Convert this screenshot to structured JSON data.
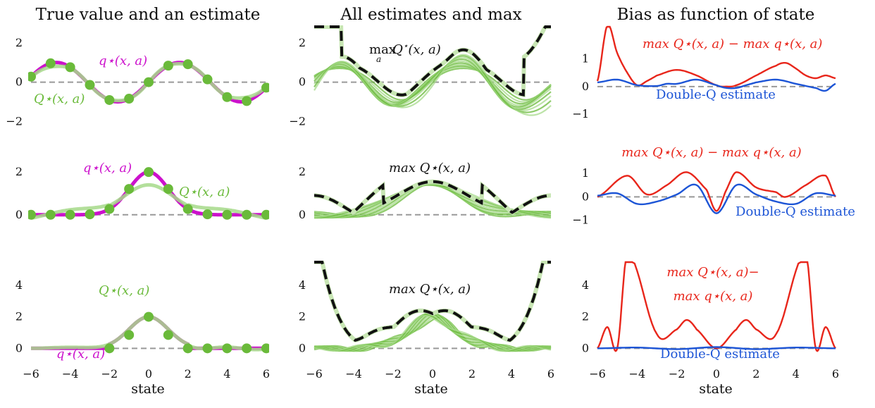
{
  "figure": {
    "column_titles": [
      "True value and an estimate",
      "All estimates and max",
      "Bias as function of state"
    ],
    "xlabel": "state"
  },
  "colors": {
    "true_value": "#cc11cc",
    "estimate": "#6aba3a",
    "estimate_light": "#a6d98a",
    "max": "#111111",
    "bias": "#e8261b",
    "double_q": "#1d55d6",
    "zero_line": "#999999"
  },
  "labels": {
    "q_true": "q⋆(x, a)",
    "q_est": "Q⋆(x, a)",
    "max_est": "max Q⋆(x, a)",
    "bias_expr": "max Q⋆(x, a) − max q⋆(x, a)",
    "bias_expr_line1": "max Q⋆(x, a)−",
    "bias_expr_line2": "max q⋆(x, a)",
    "double_q": "Double-Q estimate"
  },
  "chart_data": [
    {
      "type": "line",
      "row": 1,
      "col": 1,
      "title": "True value and an estimate",
      "xlabel": "",
      "xlim": [
        -6,
        6
      ],
      "ylim": [
        -2.2,
        2.6
      ],
      "yticks": [
        -2,
        0,
        2
      ],
      "xticks": [],
      "series": [
        {
          "name": "q⋆(x, a)",
          "role": "true_value",
          "function": "sin(x)",
          "x": [
            -6,
            6
          ]
        },
        {
          "name": "Q⋆(x, a)",
          "role": "estimate",
          "fit_points": "integer states -6..6",
          "approx": "sin(x) polynomial fit"
        }
      ],
      "points": {
        "x": [
          -6,
          -5,
          -4,
          -3,
          -2,
          -1,
          0,
          1,
          2,
          3,
          4,
          5,
          6
        ],
        "y": [
          0.28,
          0.96,
          0.76,
          -0.14,
          -0.91,
          -0.84,
          0.0,
          0.84,
          0.91,
          0.14,
          -0.76,
          -0.96,
          -0.28
        ]
      }
    },
    {
      "type": "line",
      "row": 1,
      "col": 2,
      "title": "All estimates and max",
      "xlim": [
        -6,
        6
      ],
      "ylim": [
        -2.2,
        2.6
      ],
      "yticks": [
        -2,
        0,
        2
      ],
      "xticks": [],
      "series": [
        {
          "name": "estimates",
          "role": "estimate",
          "count": 10
        },
        {
          "name": "max Q⋆(x, a)",
          "role": "max",
          "style": "dashed"
        }
      ]
    },
    {
      "type": "line",
      "row": 1,
      "col": 3,
      "title": "Bias as function of state",
      "xlim": [
        -6,
        6
      ],
      "ylim": [
        -1.4,
        2.0
      ],
      "yticks": [
        -1,
        0,
        1
      ],
      "xticks": [],
      "series": [
        {
          "name": "max Q⋆(x, a) − max q⋆(x, a)",
          "role": "bias",
          "x": [
            -6,
            -5.5,
            -5,
            -4.5,
            -4,
            -3.5,
            -3,
            -2,
            -1,
            0,
            0.5,
            1,
            2,
            3,
            3.5,
            4,
            4.5,
            5,
            5.5,
            6
          ],
          "y": [
            0.2,
            2.2,
            1.2,
            0.5,
            0.05,
            0.2,
            0.4,
            0.6,
            0.4,
            0.05,
            0.0,
            0.05,
            0.4,
            0.75,
            0.85,
            0.65,
            0.4,
            0.3,
            0.4,
            0.3
          ]
        },
        {
          "name": "Double-Q estimate",
          "role": "double_q",
          "x": [
            -6,
            -5,
            -4,
            -3,
            -2.5,
            -2,
            -1,
            0,
            0.5,
            1,
            1.5,
            2,
            3,
            4,
            5,
            5.5,
            6
          ],
          "y": [
            0.15,
            0.25,
            0.05,
            0.02,
            0.1,
            0.1,
            0.25,
            0.05,
            -0.05,
            -0.05,
            0.05,
            0.15,
            0.25,
            0.1,
            -0.05,
            -0.15,
            0.1
          ]
        }
      ]
    },
    {
      "type": "line",
      "row": 2,
      "col": 1,
      "xlim": [
        -6,
        6
      ],
      "ylim": [
        -0.7,
        2.6
      ],
      "yticks": [
        0,
        2
      ],
      "xticks": [],
      "series": [
        {
          "name": "q⋆(x, a)",
          "role": "true_value",
          "function": "2·exp(-x²/2)"
        },
        {
          "name": "Q⋆(x, a)",
          "role": "estimate",
          "fit_points": "integer states -6..6"
        }
      ],
      "points": {
        "x": [
          -6,
          -5,
          -4,
          -3,
          -2,
          -1,
          0,
          1,
          2,
          3,
          4,
          5,
          6
        ],
        "y": [
          0.0,
          0.0,
          0.0,
          0.02,
          0.27,
          1.21,
          2.0,
          1.21,
          0.27,
          0.02,
          0.0,
          0.0,
          0.0
        ]
      }
    },
    {
      "type": "line",
      "row": 2,
      "col": 2,
      "xlim": [
        -6,
        6
      ],
      "ylim": [
        -0.7,
        2.6
      ],
      "yticks": [
        0,
        2
      ],
      "xticks": [],
      "series": [
        {
          "name": "estimates",
          "role": "estimate",
          "count": 10
        },
        {
          "name": "max Q⋆(x, a)",
          "role": "max",
          "style": "dashed"
        }
      ]
    },
    {
      "type": "line",
      "row": 2,
      "col": 3,
      "xlim": [
        -6,
        6
      ],
      "ylim": [
        -1.4,
        1.6
      ],
      "yticks": [
        -1,
        0,
        1
      ],
      "xticks": [],
      "series": [
        {
          "name": "max Q⋆(x, a) − max q⋆(x, a)",
          "role": "bias",
          "x": [
            -6,
            -4.5,
            -3.5,
            -2.5,
            -1.5,
            -0.5,
            0,
            0.5,
            1,
            2,
            3,
            3.5,
            4.5,
            5.5,
            6
          ],
          "y": [
            0.0,
            0.9,
            0.1,
            0.5,
            1.05,
            0.3,
            -0.6,
            0.3,
            1.05,
            0.4,
            0.2,
            0.0,
            0.5,
            0.9,
            0.0
          ]
        },
        {
          "name": "Double-Q estimate",
          "role": "double_q",
          "x": [
            -6,
            -5,
            -4,
            -3,
            -2,
            -1,
            0,
            1,
            2,
            3,
            4,
            5,
            6
          ],
          "y": [
            0.05,
            0.15,
            -0.3,
            -0.2,
            0.1,
            0.5,
            -0.7,
            0.5,
            0.1,
            -0.2,
            -0.3,
            0.15,
            0.05
          ]
        }
      ]
    },
    {
      "type": "line",
      "row": 3,
      "col": 1,
      "xlim": [
        -6,
        6
      ],
      "ylim": [
        -0.7,
        5.2
      ],
      "yticks": [
        0,
        2,
        4
      ],
      "xticks": [
        -6,
        -4,
        -2,
        0,
        2,
        4,
        6
      ],
      "xlabel": "state",
      "series": [
        {
          "name": "q⋆(x, a)",
          "role": "true_value",
          "function": "2·exp(-x²/2), 0 for |x|>2"
        },
        {
          "name": "Q⋆(x, a)",
          "role": "estimate",
          "fit_points": "integer states -2..6"
        }
      ],
      "points": {
        "x": [
          -2,
          -1,
          0,
          1,
          2,
          3,
          4,
          5,
          6
        ],
        "y": [
          0.0,
          0.85,
          2.0,
          0.85,
          0.0,
          0.0,
          0.0,
          0.0,
          0.0
        ]
      }
    },
    {
      "type": "line",
      "row": 3,
      "col": 2,
      "xlim": [
        -6,
        6
      ],
      "ylim": [
        -0.7,
        5.2
      ],
      "yticks": [
        0,
        2,
        4
      ],
      "xticks": [
        -6,
        -4,
        -2,
        0,
        2,
        4,
        6
      ],
      "xlabel": "state",
      "series": [
        {
          "name": "estimates",
          "role": "estimate",
          "count": 10
        },
        {
          "name": "max Q⋆(x, a)",
          "role": "max",
          "style": "dashed"
        }
      ]
    },
    {
      "type": "line",
      "row": 3,
      "col": 3,
      "xlim": [
        -6,
        6
      ],
      "ylim": [
        -0.7,
        5.2
      ],
      "yticks": [
        0,
        2,
        4
      ],
      "xticks": [
        -6,
        -4,
        -2,
        0,
        2,
        4,
        6
      ],
      "xlabel": "state",
      "series": [
        {
          "name": "max Q⋆(x, a) − max q⋆(x, a)",
          "role": "bias",
          "x": [
            -6,
            -5.5,
            -5,
            -4.5,
            -3,
            -2,
            -1.5,
            -1,
            0,
            1,
            1.5,
            2,
            3,
            4.5,
            5,
            5.5,
            6
          ],
          "y": [
            0.0,
            1.35,
            0.0,
            6.0,
            0.9,
            1.2,
            1.8,
            1.2,
            0.0,
            1.2,
            1.8,
            1.2,
            0.9,
            6.0,
            0.0,
            1.35,
            0.0
          ]
        },
        {
          "name": "Double-Q estimate",
          "role": "double_q",
          "x": [
            -6,
            -4,
            -2,
            0,
            2,
            4,
            6
          ],
          "y": [
            0.0,
            0.05,
            -0.05,
            0.08,
            -0.05,
            0.05,
            0.0
          ]
        }
      ]
    }
  ]
}
